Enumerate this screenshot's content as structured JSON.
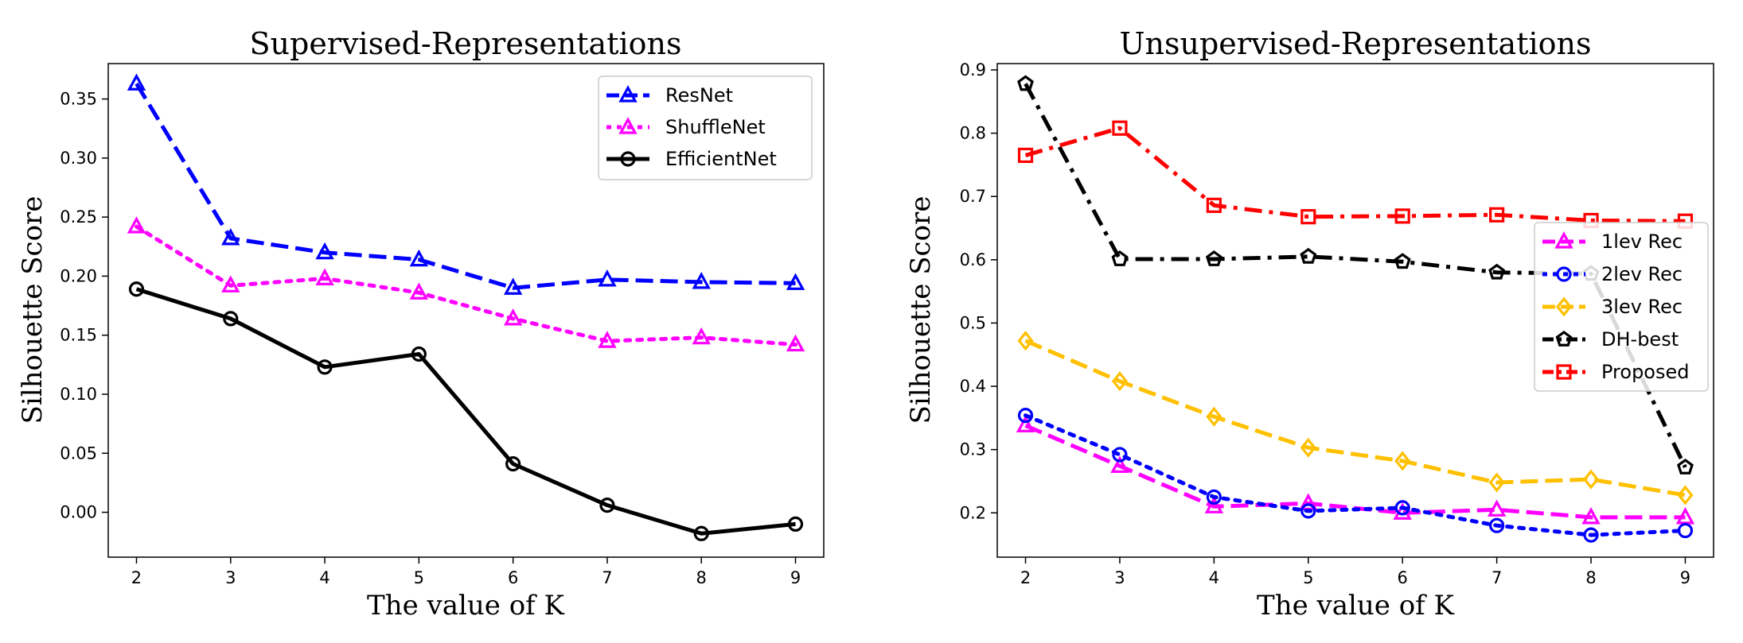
{
  "chart_data": [
    {
      "type": "line",
      "title": "Supervised-Representations",
      "xlabel": "The value of K",
      "ylabel": "Silhouette Score",
      "x": [
        2,
        3,
        4,
        5,
        6,
        7,
        8,
        9
      ],
      "xlim": [
        1.7,
        9.3
      ],
      "ylim": [
        -0.038,
        0.38
      ],
      "yticks": [
        0.0,
        0.05,
        0.1,
        0.15,
        0.2,
        0.25,
        0.3,
        0.35
      ],
      "yticklabels": [
        "0.00",
        "0.05",
        "0.10",
        "0.15",
        "0.20",
        "0.25",
        "0.30",
        "0.35"
      ],
      "grid": false,
      "legend_position": "top-right",
      "series": [
        {
          "name": "ResNet",
          "color": "#0000ff",
          "linestyle": "dashed",
          "marker": "triangle-up",
          "values": [
            0.363,
            0.232,
            0.22,
            0.214,
            0.19,
            0.197,
            0.195,
            0.194
          ]
        },
        {
          "name": "ShuffleNet",
          "color": "#ff00ff",
          "linestyle": "dotted",
          "marker": "triangle-up",
          "values": [
            0.242,
            0.192,
            0.198,
            0.186,
            0.164,
            0.145,
            0.148,
            0.142
          ]
        },
        {
          "name": "EfficientNet",
          "color": "#000000",
          "linestyle": "solid",
          "marker": "circle",
          "values": [
            0.189,
            0.164,
            0.123,
            0.134,
            0.041,
            0.006,
            -0.018,
            -0.01
          ]
        }
      ]
    },
    {
      "type": "line",
      "title": "Unsupervised-Representations",
      "xlabel": "The value of K",
      "ylabel": "Silhouette Score",
      "x": [
        2,
        3,
        4,
        5,
        6,
        7,
        8,
        9
      ],
      "xlim": [
        1.7,
        9.3
      ],
      "ylim": [
        0.13,
        0.91
      ],
      "yticks": [
        0.2,
        0.3,
        0.4,
        0.5,
        0.6,
        0.7,
        0.8,
        0.9
      ],
      "yticklabels": [
        "0.2",
        "0.3",
        "0.4",
        "0.5",
        "0.6",
        "0.7",
        "0.8",
        "0.9"
      ],
      "grid": false,
      "legend_position": "center-right",
      "series": [
        {
          "name": "1lev Rec",
          "color": "#ff00ff",
          "linestyle": "dashed",
          "marker": "triangle-up",
          "values": [
            0.338,
            0.274,
            0.21,
            0.215,
            0.2,
            0.205,
            0.193,
            0.193
          ]
        },
        {
          "name": "2lev Rec",
          "color": "#0000ff",
          "linestyle": "dotted",
          "marker": "circle",
          "values": [
            0.354,
            0.292,
            0.225,
            0.203,
            0.208,
            0.18,
            0.165,
            0.172
          ]
        },
        {
          "name": "3lev Rec",
          "color": "#ffc000",
          "linestyle": "dashed",
          "marker": "diamond",
          "values": [
            0.472,
            0.408,
            0.352,
            0.303,
            0.282,
            0.248,
            0.253,
            0.228
          ]
        },
        {
          "name": "DH-best",
          "color": "#000000",
          "linestyle": "dashdot",
          "marker": "pentagon",
          "values": [
            0.878,
            0.601,
            0.601,
            0.605,
            0.597,
            0.58,
            0.578,
            0.272
          ]
        },
        {
          "name": "Proposed",
          "color": "#ff0000",
          "linestyle": "dashdot",
          "marker": "square",
          "values": [
            0.765,
            0.808,
            0.686,
            0.668,
            0.669,
            0.671,
            0.662,
            0.661
          ]
        }
      ]
    }
  ]
}
